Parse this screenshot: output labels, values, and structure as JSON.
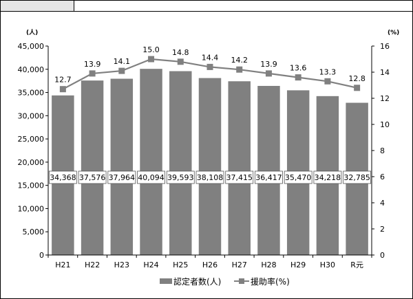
{
  "chart_data": {
    "type": "bar",
    "categories": [
      "H21",
      "H22",
      "H23",
      "H24",
      "H25",
      "H26",
      "H27",
      "H28",
      "H29",
      "H30",
      "R元"
    ],
    "series": [
      {
        "name": "認定者数(人)",
        "type": "bar",
        "axis": "left",
        "values": [
          34368,
          37576,
          37964,
          40094,
          39593,
          38108,
          37415,
          36417,
          35470,
          34218,
          32785
        ],
        "labels": [
          "34,368",
          "37,576",
          "37,964",
          "40,094",
          "39,593",
          "38,108",
          "37,415",
          "36,417",
          "35,470",
          "34,218",
          "32,785"
        ],
        "color": "#808080"
      },
      {
        "name": "援助率(%)",
        "type": "line",
        "axis": "right",
        "values": [
          12.7,
          13.9,
          14.1,
          15.0,
          14.8,
          14.4,
          14.2,
          13.9,
          13.6,
          13.3,
          12.8
        ],
        "labels": [
          "12.7",
          "13.9",
          "14.1",
          "15.0",
          "14.8",
          "14.4",
          "14.2",
          "13.9",
          "13.6",
          "13.3",
          "12.8"
        ],
        "color": "#808080"
      }
    ],
    "y_left": {
      "unit": "(人)",
      "ylim": [
        0,
        45000
      ],
      "ticks": [
        "0",
        "5,000",
        "10,000",
        "15,000",
        "20,000",
        "25,000",
        "30,000",
        "35,000",
        "40,000",
        "45,000"
      ]
    },
    "y_right": {
      "unit": "(%)",
      "ylim": [
        0,
        16
      ],
      "ticks": [
        "0",
        "2",
        "4",
        "6",
        "8",
        "10",
        "12",
        "14",
        "16"
      ]
    },
    "grid": false,
    "legend_position": "bottom"
  }
}
